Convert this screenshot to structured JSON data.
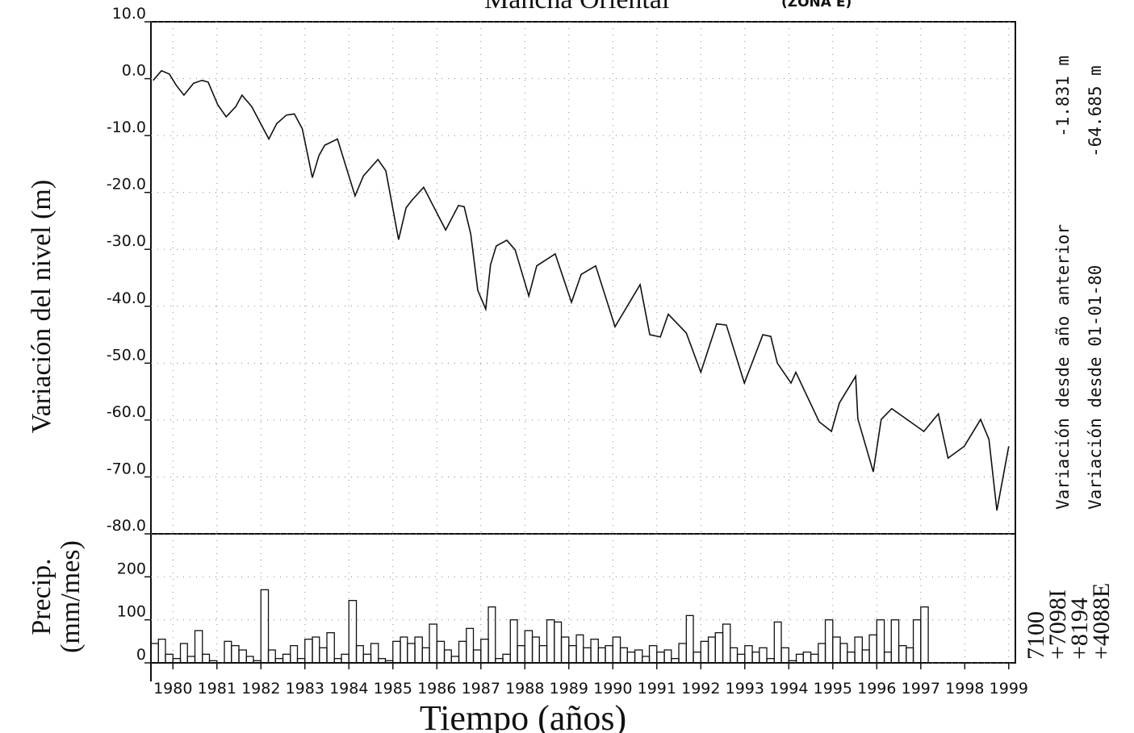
{
  "chart_data": [
    {
      "type": "line",
      "title": "Mancha Oriental",
      "subtitle": "(ZONA E)",
      "y_label": "Variación del nivel (m)",
      "color": "#111111",
      "grid": true,
      "xlim": [
        1979.5,
        1999.15
      ],
      "ylim": [
        -80,
        10
      ],
      "yticks": [
        {
          "value": 10,
          "label": "10.0"
        },
        {
          "value": 0,
          "label": "0.0"
        },
        {
          "value": -10,
          "label": "-10.0"
        },
        {
          "value": -20,
          "label": "-20.0"
        },
        {
          "value": -30,
          "label": "-30.0"
        },
        {
          "value": -40,
          "label": "-40.0"
        },
        {
          "value": -50,
          "label": "-50.0"
        },
        {
          "value": -60,
          "label": "-60.0"
        },
        {
          "value": -70,
          "label": "-70.0"
        },
        {
          "value": -80,
          "label": "-80.0"
        }
      ],
      "x": [
        1979.55,
        1979.74,
        1979.92,
        1980.07,
        1980.25,
        1980.47,
        1980.66,
        1980.8,
        1981.02,
        1981.21,
        1981.43,
        1981.57,
        1981.79,
        1982.18,
        1982.36,
        1982.58,
        1982.76,
        1982.94,
        1983.17,
        1983.32,
        1983.45,
        1983.74,
        1984.14,
        1984.33,
        1984.66,
        1984.84,
        1985.13,
        1985.3,
        1985.44,
        1985.7,
        1986.2,
        1986.49,
        1986.62,
        1986.77,
        1986.93,
        1987.11,
        1987.22,
        1987.35,
        1987.59,
        1987.78,
        1988.09,
        1988.27,
        1988.69,
        1989.06,
        1989.28,
        1989.61,
        1990.05,
        1990.62,
        1990.84,
        1991.08,
        1991.26,
        1991.67,
        1992.0,
        1992.36,
        1992.58,
        1992.99,
        1993.41,
        1993.59,
        1993.74,
        1994.05,
        1994.16,
        1994.69,
        1994.97,
        1995.15,
        1995.52,
        1995.57,
        1995.92,
        1996.1,
        1996.34,
        1997.07,
        1997.4,
        1997.62,
        1997.99,
        1998.36,
        1998.55,
        1998.73,
        1999.0
      ],
      "values": [
        -0.3,
        1.4,
        0.8,
        -1.1,
        -2.9,
        -0.8,
        -0.3,
        -0.6,
        -4.6,
        -6.7,
        -4.9,
        -2.9,
        -4.9,
        -10.6,
        -7.9,
        -6.4,
        -6.2,
        -8.8,
        -17.4,
        -13.5,
        -11.7,
        -10.6,
        -20.6,
        -17.1,
        -14.2,
        -16.2,
        -28.3,
        -22.7,
        -21.3,
        -19.1,
        -26.6,
        -22.3,
        -22.5,
        -27.3,
        -37.2,
        -40.5,
        -32.7,
        -29.4,
        -28.4,
        -30.1,
        -38.2,
        -32.9,
        -30.8,
        -39.3,
        -34.4,
        -32.9,
        -43.6,
        -36.2,
        -45.0,
        -45.4,
        -41.4,
        -44.7,
        -51.6,
        -43.1,
        -43.3,
        -53.5,
        -45.0,
        -45.3,
        -50.0,
        -53.5,
        -51.6,
        -60.3,
        -62.0,
        -57.0,
        -52.3,
        -59.8,
        -69.1,
        -59.9,
        -58.0,
        -62.0,
        -58.9,
        -66.7,
        -64.6,
        -59.9,
        -63.4,
        -75.9,
        -64.6
      ],
      "annotations": [
        {
          "text": "Variación desde año anterior",
          "value": "-1.831 m"
        },
        {
          "text": "Variación desde 01-01-80",
          "value": "-64.685 m"
        }
      ]
    },
    {
      "type": "histogram",
      "y_label": [
        "Precip.",
        "(mm/mes)"
      ],
      "x_label": "Tiempo (años)",
      "color": "#111111",
      "grid": true,
      "xlim": [
        1979.5,
        1999.15
      ],
      "ylim": [
        0,
        300
      ],
      "yticks": [
        0,
        100,
        200
      ],
      "xticks": [
        1980,
        1981,
        1982,
        1983,
        1984,
        1985,
        1986,
        1987,
        1988,
        1989,
        1990,
        1991,
        1992,
        1993,
        1994,
        1995,
        1996,
        1997,
        1998,
        1999
      ],
      "bins": [
        1979.5,
        1979.67,
        1979.83,
        1980,
        1980.17,
        1980.33,
        1980.5,
        1980.67,
        1980.83,
        1981,
        1981.17,
        1981.33,
        1981.5,
        1981.67,
        1981.83,
        1982,
        1982.17,
        1982.33,
        1982.5,
        1982.67,
        1982.83,
        1983,
        1983.17,
        1983.33,
        1983.5,
        1983.67,
        1983.83,
        1984,
        1984.17,
        1984.33,
        1984.5,
        1984.67,
        1984.83,
        1985,
        1985.17,
        1985.33,
        1985.5,
        1985.67,
        1985.83,
        1986,
        1986.17,
        1986.33,
        1986.5,
        1986.67,
        1986.83,
        1987,
        1987.17,
        1987.33,
        1987.5,
        1987.67,
        1987.83,
        1988,
        1988.17,
        1988.33,
        1988.5,
        1988.67,
        1988.83,
        1989,
        1989.17,
        1989.33,
        1989.5,
        1989.67,
        1989.83,
        1990,
        1990.17,
        1990.33,
        1990.5,
        1990.67,
        1990.83,
        1991,
        1991.17,
        1991.33,
        1991.5,
        1991.67,
        1991.83,
        1992,
        1992.17,
        1992.33,
        1992.5,
        1992.67,
        1992.83,
        1993,
        1993.17,
        1993.33,
        1993.5,
        1993.67,
        1993.83,
        1994,
        1994.17,
        1994.33,
        1994.5,
        1994.67,
        1994.83,
        1995,
        1995.17,
        1995.33,
        1995.5,
        1995.67,
        1995.83,
        1996,
        1996.17,
        1996.33,
        1996.5,
        1996.67,
        1996.83,
        1997,
        1997.17
      ],
      "values": [
        45,
        55,
        20,
        10,
        45,
        15,
        75,
        20,
        5,
        0,
        50,
        40,
        30,
        15,
        5,
        170,
        30,
        10,
        20,
        40,
        10,
        55,
        60,
        35,
        70,
        10,
        20,
        145,
        40,
        20,
        45,
        10,
        5,
        50,
        60,
        45,
        60,
        35,
        90,
        50,
        30,
        15,
        50,
        80,
        30,
        55,
        130,
        10,
        20,
        100,
        40,
        75,
        60,
        40,
        100,
        95,
        60,
        40,
        65,
        35,
        55,
        35,
        40,
        60,
        35,
        25,
        30,
        15,
        40,
        25,
        30,
        10,
        45,
        110,
        25,
        50,
        60,
        70,
        90,
        35,
        20,
        40,
        25,
        35,
        10,
        95,
        35,
        5,
        20,
        25,
        20,
        45,
        100,
        60,
        45,
        25,
        60,
        30,
        65,
        100,
        25,
        100,
        40,
        35,
        100,
        130
      ],
      "codes": [
        "7100",
        "+7098I",
        "+8194",
        "+4088E"
      ]
    }
  ]
}
